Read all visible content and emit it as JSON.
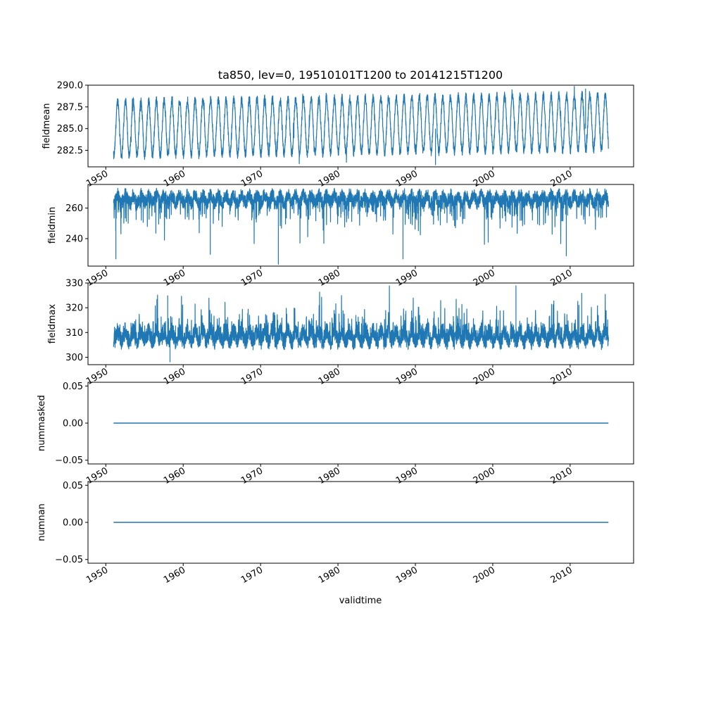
{
  "chart_data": {
    "title": "ta850, lev=0, 19510101T1200 to 20141215T1200",
    "xlabel": "validtime",
    "x_range": [
      "1951-01-01",
      "2014-12-15"
    ],
    "xlim": [
      1947.7,
      2018.2
    ],
    "x_ticks": [
      "1950",
      "1960",
      "1970",
      "1980",
      "1990",
      "2000",
      "2010"
    ],
    "line_color": "#1f77b4",
    "grid": false,
    "legend": "none",
    "panels": [
      {
        "type": "line",
        "ylabel": "fieldmean",
        "ylim": [
          280.6,
          290.0
        ],
        "y_ticks": [
          "282.5",
          "285.0",
          "287.5",
          "290.0"
        ],
        "pattern": "seasonal-cycle",
        "approx_minimum": 280.8,
        "approx_maximum": 289.6,
        "approx_mean": 285.0
      },
      {
        "type": "line",
        "ylabel": "fieldmin",
        "ylim": [
          222.0,
          275.5
        ],
        "y_ticks": [
          "240",
          "260"
        ],
        "pattern": "noisy-with-downward-spikes",
        "approx_minimum": 223.0,
        "approx_maximum": 274.0,
        "approx_mean": 266.0
      },
      {
        "type": "line",
        "ylabel": "fieldmax",
        "ylim": [
          297.0,
          330.0
        ],
        "y_ticks": [
          "300",
          "310",
          "320",
          "330"
        ],
        "pattern": "noisy-with-upward-spikes",
        "approx_minimum": 298.0,
        "approx_maximum": 329.0,
        "approx_mean": 309.5
      },
      {
        "type": "line",
        "ylabel": "nummasked",
        "ylim": [
          -0.055,
          0.055
        ],
        "y_ticks": [
          "−0.05",
          "0.00",
          "0.05"
        ],
        "pattern": "constant",
        "value": 0.0
      },
      {
        "type": "line",
        "ylabel": "numnan",
        "ylim": [
          -0.055,
          0.055
        ],
        "y_ticks": [
          "−0.05",
          "0.00",
          "0.05"
        ],
        "pattern": "constant",
        "value": 0.0
      }
    ]
  }
}
